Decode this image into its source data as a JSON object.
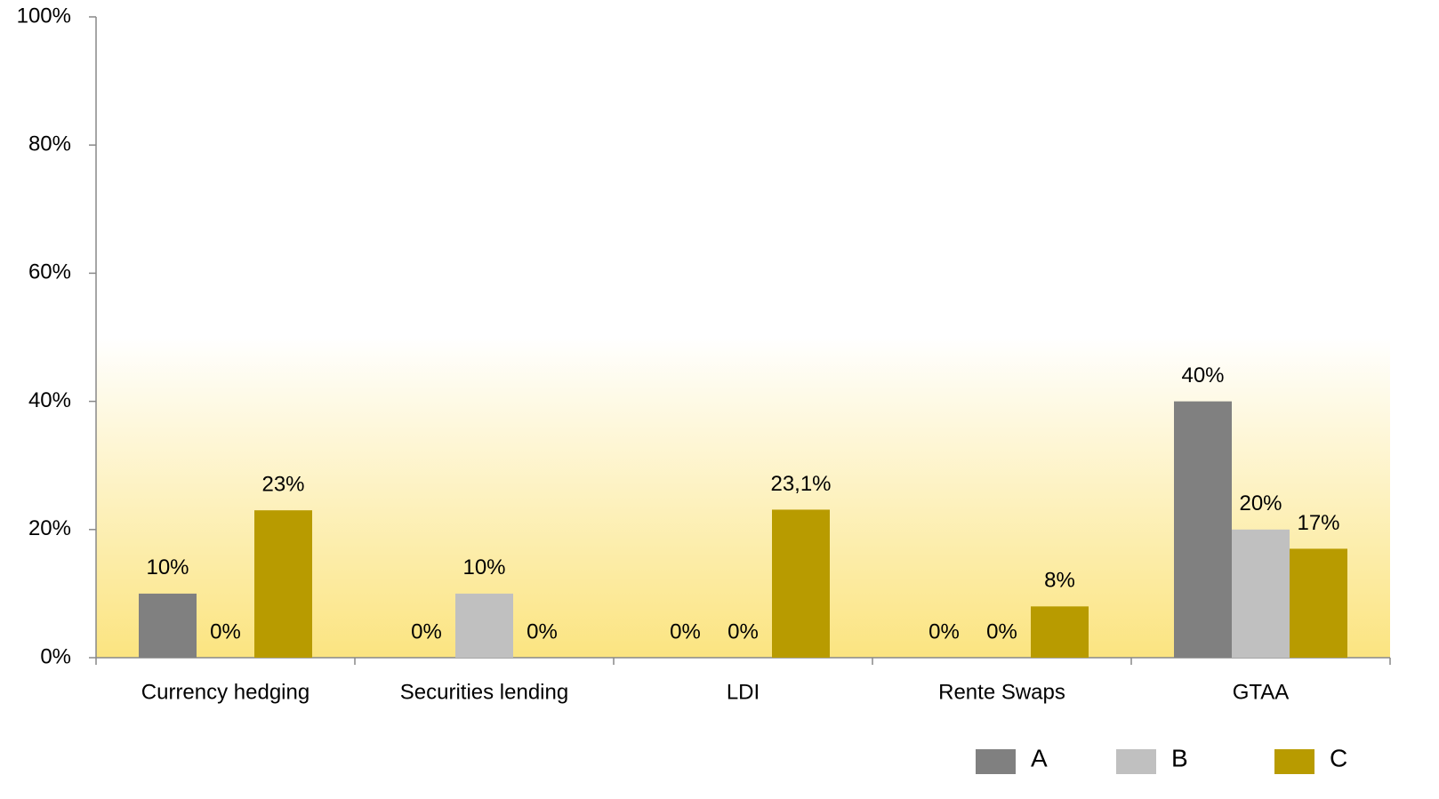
{
  "chart_data": {
    "type": "bar",
    "categories": [
      "Currency hedging",
      "Securities lending",
      "LDI",
      "Rente Swaps",
      "GTAA"
    ],
    "series": [
      {
        "name": "A",
        "color": "#808080",
        "values": [
          10,
          0,
          0,
          0,
          40
        ],
        "value_labels": [
          "10%",
          "0%",
          "0%",
          "0%",
          "40%"
        ]
      },
      {
        "name": "B",
        "color": "#c0c0c0",
        "values": [
          0,
          10,
          0,
          0,
          20
        ],
        "value_labels": [
          "0%",
          "10%",
          "0%",
          "0%",
          "20%"
        ]
      },
      {
        "name": "C",
        "color": "#b89b00",
        "values": [
          23,
          0,
          23.1,
          8,
          17
        ],
        "value_labels": [
          "23%",
          "0%",
          "23,1%",
          "8%",
          "17%"
        ]
      }
    ],
    "ylim": [
      0,
      100
    ],
    "yticks": [
      {
        "value": 0,
        "label": "0%"
      },
      {
        "value": 20,
        "label": "20%"
      },
      {
        "value": 40,
        "label": "40%"
      },
      {
        "value": 60,
        "label": "60%"
      },
      {
        "value": 80,
        "label": "80%"
      },
      {
        "value": 100,
        "label": "100%"
      }
    ],
    "grid": false,
    "legend": "bottom-right"
  }
}
